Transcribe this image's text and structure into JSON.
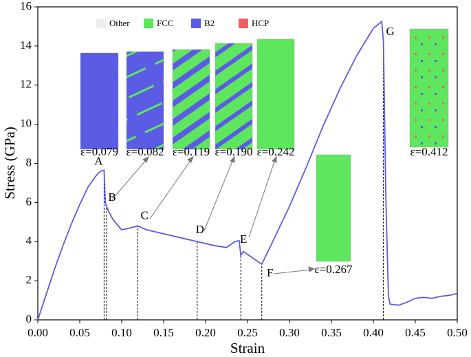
{
  "chart_data": {
    "type": "line",
    "xlabel": "Strain",
    "ylabel": "Stress (GPa)",
    "xlim": [
      0,
      0.5
    ],
    "xticks": [
      {
        "value": 0,
        "label": "0.00"
      },
      {
        "value": 0.05,
        "label": "0.05"
      },
      {
        "value": 0.1,
        "label": "0.10"
      },
      {
        "value": 0.15,
        "label": "0.15"
      },
      {
        "value": 0.2,
        "label": "0.20"
      },
      {
        "value": 0.25,
        "label": "0.25"
      },
      {
        "value": 0.3,
        "label": "0.30"
      },
      {
        "value": 0.35,
        "label": "0.35"
      },
      {
        "value": 0.4,
        "label": "0.40"
      },
      {
        "value": 0.45,
        "label": "0.45"
      },
      {
        "value": 0.5,
        "label": "0.50"
      }
    ],
    "ylim": [
      0,
      16
    ],
    "yticks": [
      0,
      2,
      4,
      6,
      8,
      10,
      12,
      14,
      16
    ],
    "series": [
      {
        "color": "#5b5be6",
        "x": [
          0,
          0.01,
          0.02,
          0.03,
          0.04,
          0.05,
          0.06,
          0.07,
          0.075,
          0.079,
          0.0805,
          0.082,
          0.085,
          0.09,
          0.1,
          0.11,
          0.119,
          0.13,
          0.15,
          0.17,
          0.19,
          0.21,
          0.225,
          0.235,
          0.24,
          0.242,
          0.245,
          0.255,
          0.265,
          0.267,
          0.28,
          0.3,
          0.32,
          0.34,
          0.36,
          0.38,
          0.4,
          0.41,
          0.412,
          0.415,
          0.418,
          0.42,
          0.43,
          0.44,
          0.45,
          0.46,
          0.47,
          0.48,
          0.49,
          0.5
        ],
        "values": [
          0,
          1.3,
          2.6,
          3.8,
          4.9,
          5.9,
          6.8,
          7.4,
          7.6,
          7.65,
          6.0,
          5.8,
          5.5,
          5.1,
          4.6,
          4.7,
          4.8,
          4.6,
          4.4,
          4.2,
          4.0,
          3.8,
          3.7,
          4.0,
          4.05,
          3.3,
          3.5,
          3.2,
          2.9,
          2.85,
          4.0,
          5.8,
          7.8,
          9.9,
          11.8,
          13.5,
          14.9,
          15.25,
          14.2,
          6.0,
          1.2,
          0.8,
          0.75,
          0.9,
          1.1,
          1.15,
          1.1,
          1.2,
          1.25,
          1.35
        ]
      }
    ],
    "points": [
      {
        "label": "A",
        "x": 0.079,
        "y": 7.65
      },
      {
        "label": "B",
        "x": 0.082,
        "y": 5.8
      },
      {
        "label": "C",
        "x": 0.119,
        "y": 4.8
      },
      {
        "label": "D",
        "x": 0.19,
        "y": 4.0
      },
      {
        "label": "E",
        "x": 0.242,
        "y": 3.3
      },
      {
        "label": "F",
        "x": 0.267,
        "y": 2.85
      },
      {
        "label": "G",
        "x": 0.412,
        "y": 14.2
      }
    ],
    "legend": [
      {
        "name": "Other",
        "color": "#eeeeee"
      },
      {
        "name": "FCC",
        "color": "#5ee65e"
      },
      {
        "name": "B2",
        "color": "#5b5be6"
      },
      {
        "name": "HCP",
        "color": "#f06060"
      }
    ],
    "insets": [
      "ε=0.079",
      "ε=0.082",
      "ε=0.119",
      "ε=0.190",
      "ε=0.242",
      "ε=0.267",
      "ε=0.412"
    ]
  }
}
